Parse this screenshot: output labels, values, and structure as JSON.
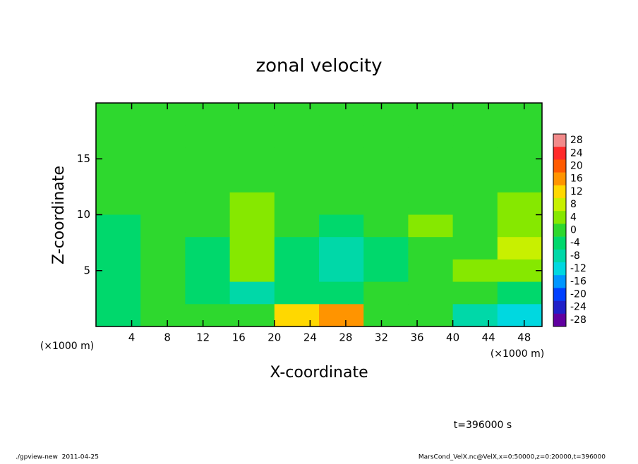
{
  "chart_data": {
    "type": "heatmap",
    "title": "zonal velocity",
    "x_label": "X-coordinate",
    "y_label": "Z-coordinate",
    "x_unit": "(×1000 m)",
    "x_unit_right": "(×1000 m)",
    "time_label": "t=396000 s",
    "footer_left": "./gpview-new  2011-04-25",
    "footer_right": "MarsCond_VelX.nc@VelX,x=0:50000,z=0:20000,t=396000",
    "xlim": [
      0,
      50
    ],
    "ylim": [
      0,
      20
    ],
    "xticks": [
      4,
      8,
      12,
      16,
      20,
      24,
      28,
      32,
      36,
      40,
      44,
      48
    ],
    "yticks": [
      5,
      10,
      15
    ],
    "x": [
      2.5,
      7.5,
      12.5,
      17.5,
      22.5,
      27.5,
      32.5,
      37.5,
      42.5,
      47.5
    ],
    "y": [
      19,
      17,
      15,
      13,
      11,
      9,
      7,
      5,
      3,
      1
    ],
    "z": [
      [
        0,
        0,
        0,
        0,
        0,
        0,
        0,
        0,
        0,
        0
      ],
      [
        0,
        0,
        0,
        0,
        0,
        0,
        0,
        0,
        1,
        0
      ],
      [
        1,
        1,
        0,
        0,
        0,
        0,
        0,
        0,
        0,
        1
      ],
      [
        1,
        1,
        0,
        0,
        -1,
        0,
        0,
        0,
        1,
        1
      ],
      [
        0,
        1,
        1,
        2,
        -1,
        0,
        0,
        0,
        1,
        2
      ],
      [
        -3,
        -2,
        1,
        2,
        -2,
        -3,
        0,
        2,
        0,
        4
      ],
      [
        -4,
        1,
        -3,
        4,
        -5,
        -8,
        -3,
        -1,
        1,
        6
      ],
      [
        -3,
        -2,
        -4,
        3,
        -6,
        -7,
        -4,
        0,
        2,
        4
      ],
      [
        -3,
        -1,
        -5,
        -7,
        -4,
        -3,
        -2,
        0,
        -2,
        -5
      ],
      [
        -3,
        -2,
        0,
        -2,
        10,
        14,
        0,
        -2,
        -8,
        -14
      ]
    ],
    "levels": [
      28,
      24,
      20,
      16,
      12,
      8,
      4,
      0,
      -4,
      -8,
      -12,
      -16,
      -20,
      -24,
      -28
    ],
    "level_colors": [
      "#f28a8a",
      "#ff2a2a",
      "#ff5a00",
      "#ff9400",
      "#ffd800",
      "#c8f000",
      "#86e800",
      "#2ed82e",
      "#00d86c",
      "#00d8a8",
      "#00d8e0",
      "#0096ff",
      "#0040ff",
      "#2020c8",
      "#6000a0"
    ]
  }
}
